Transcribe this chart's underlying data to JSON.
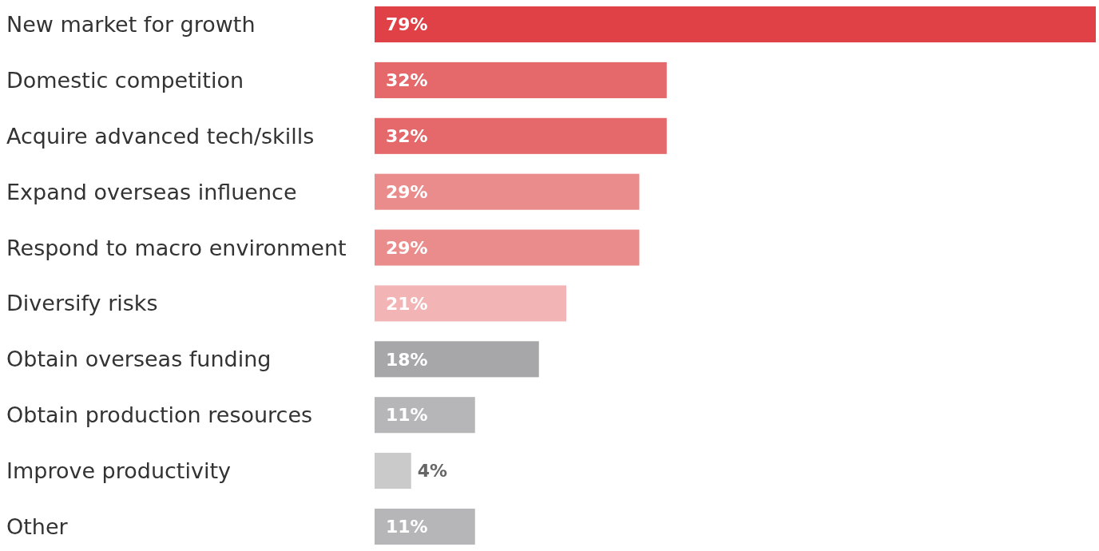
{
  "chart_data": {
    "type": "bar",
    "orientation": "horizontal",
    "categories": [
      "New market for growth",
      "Domestic competition",
      "Acquire advanced tech/skills",
      "Expand overseas influence",
      "Respond to macro environment",
      "Diversify risks",
      "Obtain overseas funding",
      "Obtain production resources",
      "Improve productivity",
      "Other"
    ],
    "values": [
      79,
      32,
      32,
      29,
      29,
      21,
      18,
      11,
      4,
      11
    ],
    "colors": [
      "#e04146",
      "#e5686a",
      "#e5686a",
      "#ea8c8b",
      "#ea8c8b",
      "#f2b4b5",
      "#a7a7a9",
      "#b6b6b8",
      "#cacaca",
      "#b6b6b8"
    ],
    "value_labels": [
      "79%",
      "32%",
      "32%",
      "29%",
      "29%",
      "21%",
      "18%",
      "11%",
      "4%",
      "11%"
    ]
  }
}
